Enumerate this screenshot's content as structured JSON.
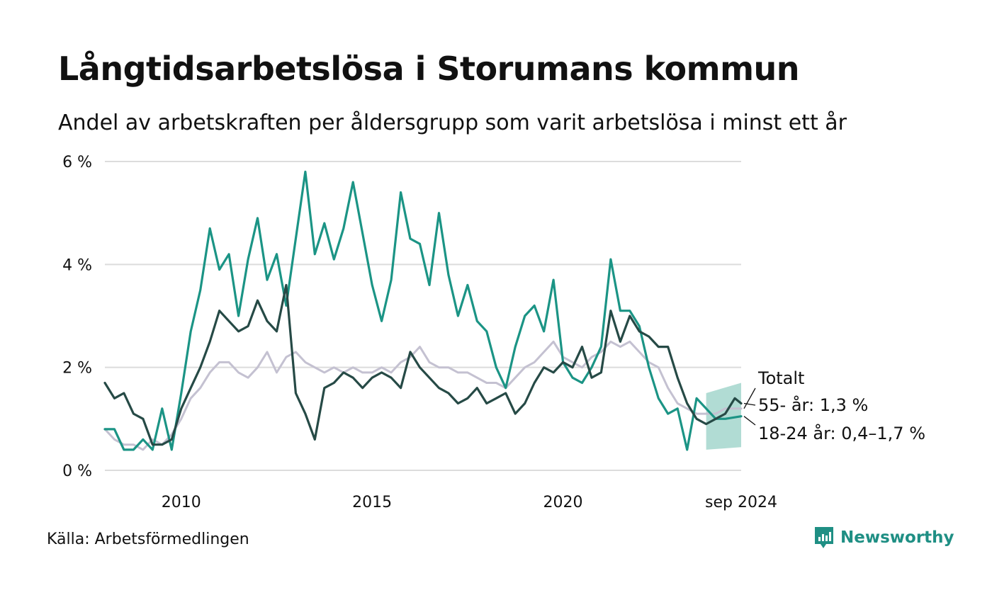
{
  "title": "Långtidsarbetslösa i Storumans kommun",
  "subtitle": "Andel av arbetskraften per åldersgrupp som varit arbetslösa i minst ett år",
  "source": "Källa: Arbetsförmedlingen",
  "brand": "Newsworthy",
  "colors": {
    "total": "#c4c1d1",
    "age55": "#264a46",
    "age18_24": "#1b9485",
    "interval": "#a8d8cf",
    "grid": "#dcdcdc",
    "brand": "#1f8f84"
  },
  "chart_data": {
    "type": "line",
    "title": "Långtidsarbetslösa i Storumans kommun",
    "subtitle": "Andel av arbetskraften per åldersgrupp som varit arbetslösa i minst ett år",
    "xlim": [
      "2008-01",
      "2024-09"
    ],
    "ylim": [
      0,
      6
    ],
    "y_ticks": [
      0,
      2,
      4,
      6
    ],
    "y_tick_labels": [
      "0 %",
      "2 %",
      "4 %",
      "6 %"
    ],
    "x_ticks": [
      "2010-01",
      "2015-01",
      "2020-01",
      "2024-09"
    ],
    "x_tick_labels": [
      "2010",
      "2015",
      "2020",
      "sep 2024"
    ],
    "grid": "horizontal",
    "series": [
      {
        "name": "Totalt",
        "points": [
          [
            "2008-01",
            0.8
          ],
          [
            "2008-04",
            0.6
          ],
          [
            "2008-07",
            0.5
          ],
          [
            "2008-10",
            0.5
          ],
          [
            "2009-01",
            0.4
          ],
          [
            "2009-04",
            0.6
          ],
          [
            "2009-07",
            0.5
          ],
          [
            "2009-10",
            0.7
          ],
          [
            "2010-01",
            1.0
          ],
          [
            "2010-04",
            1.4
          ],
          [
            "2010-07",
            1.6
          ],
          [
            "2010-10",
            1.9
          ],
          [
            "2011-01",
            2.1
          ],
          [
            "2011-04",
            2.1
          ],
          [
            "2011-07",
            1.9
          ],
          [
            "2011-10",
            1.8
          ],
          [
            "2012-01",
            2.0
          ],
          [
            "2012-04",
            2.3
          ],
          [
            "2012-07",
            1.9
          ],
          [
            "2012-10",
            2.2
          ],
          [
            "2013-01",
            2.3
          ],
          [
            "2013-04",
            2.1
          ],
          [
            "2013-07",
            2.0
          ],
          [
            "2013-10",
            1.9
          ],
          [
            "2014-01",
            2.0
          ],
          [
            "2014-04",
            1.9
          ],
          [
            "2014-07",
            2.0
          ],
          [
            "2014-10",
            1.9
          ],
          [
            "2015-01",
            1.9
          ],
          [
            "2015-04",
            2.0
          ],
          [
            "2015-07",
            1.9
          ],
          [
            "2015-10",
            2.1
          ],
          [
            "2016-01",
            2.2
          ],
          [
            "2016-04",
            2.4
          ],
          [
            "2016-07",
            2.1
          ],
          [
            "2016-10",
            2.0
          ],
          [
            "2017-01",
            2.0
          ],
          [
            "2017-04",
            1.9
          ],
          [
            "2017-07",
            1.9
          ],
          [
            "2017-10",
            1.8
          ],
          [
            "2018-01",
            1.7
          ],
          [
            "2018-04",
            1.7
          ],
          [
            "2018-07",
            1.6
          ],
          [
            "2018-10",
            1.8
          ],
          [
            "2019-01",
            2.0
          ],
          [
            "2019-04",
            2.1
          ],
          [
            "2019-07",
            2.3
          ],
          [
            "2019-10",
            2.5
          ],
          [
            "2020-01",
            2.2
          ],
          [
            "2020-04",
            2.1
          ],
          [
            "2020-07",
            2.0
          ],
          [
            "2020-10",
            2.2
          ],
          [
            "2021-01",
            2.3
          ],
          [
            "2021-04",
            2.5
          ],
          [
            "2021-07",
            2.4
          ],
          [
            "2021-10",
            2.5
          ],
          [
            "2022-01",
            2.3
          ],
          [
            "2022-04",
            2.1
          ],
          [
            "2022-07",
            2.0
          ],
          [
            "2022-10",
            1.6
          ],
          [
            "2023-01",
            1.3
          ],
          [
            "2023-04",
            1.2
          ],
          [
            "2023-07",
            1.1
          ],
          [
            "2023-10",
            1.1
          ],
          [
            "2024-01",
            1.1
          ],
          [
            "2024-04",
            1.2
          ],
          [
            "2024-09",
            1.2
          ]
        ]
      },
      {
        "name": "55- år",
        "label": "55- år: 1,3 %",
        "points": [
          [
            "2008-01",
            1.7
          ],
          [
            "2008-04",
            1.4
          ],
          [
            "2008-07",
            1.5
          ],
          [
            "2008-10",
            1.1
          ],
          [
            "2009-01",
            1.0
          ],
          [
            "2009-04",
            0.5
          ],
          [
            "2009-07",
            0.5
          ],
          [
            "2009-10",
            0.6
          ],
          [
            "2010-01",
            1.2
          ],
          [
            "2010-04",
            1.6
          ],
          [
            "2010-07",
            2.0
          ],
          [
            "2010-10",
            2.5
          ],
          [
            "2011-01",
            3.1
          ],
          [
            "2011-04",
            2.9
          ],
          [
            "2011-07",
            2.7
          ],
          [
            "2011-10",
            2.8
          ],
          [
            "2012-01",
            3.3
          ],
          [
            "2012-04",
            2.9
          ],
          [
            "2012-07",
            2.7
          ],
          [
            "2012-10",
            3.6
          ],
          [
            "2013-01",
            1.5
          ],
          [
            "2013-04",
            1.1
          ],
          [
            "2013-07",
            0.6
          ],
          [
            "2013-10",
            1.6
          ],
          [
            "2014-01",
            1.7
          ],
          [
            "2014-04",
            1.9
          ],
          [
            "2014-07",
            1.8
          ],
          [
            "2014-10",
            1.6
          ],
          [
            "2015-01",
            1.8
          ],
          [
            "2015-04",
            1.9
          ],
          [
            "2015-07",
            1.8
          ],
          [
            "2015-10",
            1.6
          ],
          [
            "2016-01",
            2.3
          ],
          [
            "2016-04",
            2.0
          ],
          [
            "2016-07",
            1.8
          ],
          [
            "2016-10",
            1.6
          ],
          [
            "2017-01",
            1.5
          ],
          [
            "2017-04",
            1.3
          ],
          [
            "2017-07",
            1.4
          ],
          [
            "2017-10",
            1.6
          ],
          [
            "2018-01",
            1.3
          ],
          [
            "2018-04",
            1.4
          ],
          [
            "2018-07",
            1.5
          ],
          [
            "2018-10",
            1.1
          ],
          [
            "2019-01",
            1.3
          ],
          [
            "2019-04",
            1.7
          ],
          [
            "2019-07",
            2.0
          ],
          [
            "2019-10",
            1.9
          ],
          [
            "2020-01",
            2.1
          ],
          [
            "2020-04",
            2.0
          ],
          [
            "2020-07",
            2.4
          ],
          [
            "2020-10",
            1.8
          ],
          [
            "2021-01",
            1.9
          ],
          [
            "2021-04",
            3.1
          ],
          [
            "2021-07",
            2.5
          ],
          [
            "2021-10",
            3.0
          ],
          [
            "2022-01",
            2.7
          ],
          [
            "2022-04",
            2.6
          ],
          [
            "2022-07",
            2.4
          ],
          [
            "2022-10",
            2.4
          ],
          [
            "2023-01",
            1.8
          ],
          [
            "2023-04",
            1.3
          ],
          [
            "2023-07",
            1.0
          ],
          [
            "2023-10",
            0.9
          ],
          [
            "2024-01",
            1.0
          ],
          [
            "2024-04",
            1.1
          ],
          [
            "2024-07",
            1.4
          ],
          [
            "2024-09",
            1.3
          ]
        ]
      },
      {
        "name": "18-24 år",
        "label": "18-24 år: 0,4–1,7 %",
        "points": [
          [
            "2008-01",
            0.8
          ],
          [
            "2008-04",
            0.8
          ],
          [
            "2008-07",
            0.4
          ],
          [
            "2008-10",
            0.4
          ],
          [
            "2009-01",
            0.6
          ],
          [
            "2009-04",
            0.4
          ],
          [
            "2009-07",
            1.2
          ],
          [
            "2009-10",
            0.4
          ],
          [
            "2010-01",
            1.5
          ],
          [
            "2010-04",
            2.7
          ],
          [
            "2010-07",
            3.5
          ],
          [
            "2010-10",
            4.7
          ],
          [
            "2011-01",
            3.9
          ],
          [
            "2011-04",
            4.2
          ],
          [
            "2011-07",
            3.0
          ],
          [
            "2011-10",
            4.1
          ],
          [
            "2012-01",
            4.9
          ],
          [
            "2012-04",
            3.7
          ],
          [
            "2012-07",
            4.2
          ],
          [
            "2012-10",
            3.2
          ],
          [
            "2013-01",
            4.5
          ],
          [
            "2013-04",
            5.8
          ],
          [
            "2013-07",
            4.2
          ],
          [
            "2013-10",
            4.8
          ],
          [
            "2014-01",
            4.1
          ],
          [
            "2014-04",
            4.7
          ],
          [
            "2014-07",
            5.6
          ],
          [
            "2014-10",
            4.6
          ],
          [
            "2015-01",
            3.6
          ],
          [
            "2015-04",
            2.9
          ],
          [
            "2015-07",
            3.7
          ],
          [
            "2015-10",
            5.4
          ],
          [
            "2016-01",
            4.5
          ],
          [
            "2016-04",
            4.4
          ],
          [
            "2016-07",
            3.6
          ],
          [
            "2016-10",
            5.0
          ],
          [
            "2017-01",
            3.8
          ],
          [
            "2017-04",
            3.0
          ],
          [
            "2017-07",
            3.6
          ],
          [
            "2017-10",
            2.9
          ],
          [
            "2018-01",
            2.7
          ],
          [
            "2018-04",
            2.0
          ],
          [
            "2018-07",
            1.6
          ],
          [
            "2018-10",
            2.4
          ],
          [
            "2019-01",
            3.0
          ],
          [
            "2019-04",
            3.2
          ],
          [
            "2019-07",
            2.7
          ],
          [
            "2019-10",
            3.7
          ],
          [
            "2020-01",
            2.1
          ],
          [
            "2020-04",
            1.8
          ],
          [
            "2020-07",
            1.7
          ],
          [
            "2020-10",
            2.0
          ],
          [
            "2021-01",
            2.4
          ],
          [
            "2021-04",
            4.1
          ],
          [
            "2021-07",
            3.1
          ],
          [
            "2021-10",
            3.1
          ],
          [
            "2022-01",
            2.8
          ],
          [
            "2022-04",
            2.0
          ],
          [
            "2022-07",
            1.4
          ],
          [
            "2022-10",
            1.1
          ],
          [
            "2023-01",
            1.2
          ],
          [
            "2023-04",
            0.4
          ],
          [
            "2023-07",
            1.4
          ],
          [
            "2023-10",
            1.2
          ],
          [
            "2024-01",
            1.0
          ],
          [
            "2024-04",
            1.0
          ],
          [
            "2024-09",
            1.05
          ]
        ],
        "interval": {
          "from": "2023-10",
          "to": "2024-09",
          "lower": [
            0.4,
            0.45
          ],
          "upper": [
            1.5,
            1.7
          ]
        }
      }
    ],
    "annotations": [
      "Totalt",
      "55- år: 1,3 %",
      "18-24 år: 0,4–1,7 %"
    ]
  }
}
